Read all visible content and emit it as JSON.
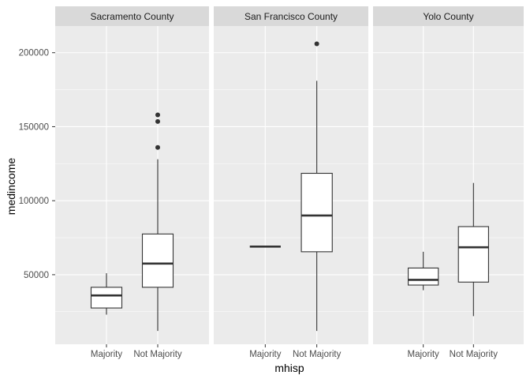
{
  "chart_data": {
    "type": "boxplot",
    "xlabel": "mhisp",
    "ylabel": "medincome",
    "ylim": [
      3000,
      218000
    ],
    "yticks": [
      50000,
      100000,
      150000,
      200000
    ],
    "ytick_labels": [
      "50000",
      "100000",
      "150000",
      "200000"
    ],
    "categories": [
      "Majority",
      "Not Majority"
    ],
    "grid": true,
    "facets": [
      {
        "name": "Sacramento County",
        "boxes": [
          {
            "category": "Majority",
            "min": 23000,
            "q1": 27500,
            "median": 36000,
            "q3": 41500,
            "max": 51000,
            "outliers": []
          },
          {
            "category": "Not Majority",
            "min": 12000,
            "q1": 41500,
            "median": 57500,
            "q3": 77500,
            "max": 128000,
            "outliers": [
              136000,
              153500,
              158000
            ]
          }
        ]
      },
      {
        "name": "San Francisco County",
        "boxes": [
          {
            "category": "Majority",
            "min": 69000,
            "q1": 69000,
            "median": 69000,
            "q3": 69000,
            "max": 69000,
            "outliers": []
          },
          {
            "category": "Not Majority",
            "min": 12000,
            "q1": 65500,
            "median": 90000,
            "q3": 118500,
            "max": 181000,
            "outliers": [
              206000
            ]
          }
        ]
      },
      {
        "name": "Yolo County",
        "boxes": [
          {
            "category": "Majority",
            "min": 39500,
            "q1": 43000,
            "median": 46500,
            "q3": 54500,
            "max": 65500,
            "outliers": []
          },
          {
            "category": "Not Majority",
            "min": 22000,
            "q1": 45000,
            "median": 68500,
            "q3": 82500,
            "max": 112000,
            "outliers": []
          }
        ]
      }
    ],
    "colors": {
      "panel_bg": "#ebebeb",
      "strip_bg": "#d9d9d9",
      "grid": "#ffffff",
      "box_fill": "#ffffff",
      "box_stroke": "#333333",
      "outlier": "#333333"
    }
  }
}
